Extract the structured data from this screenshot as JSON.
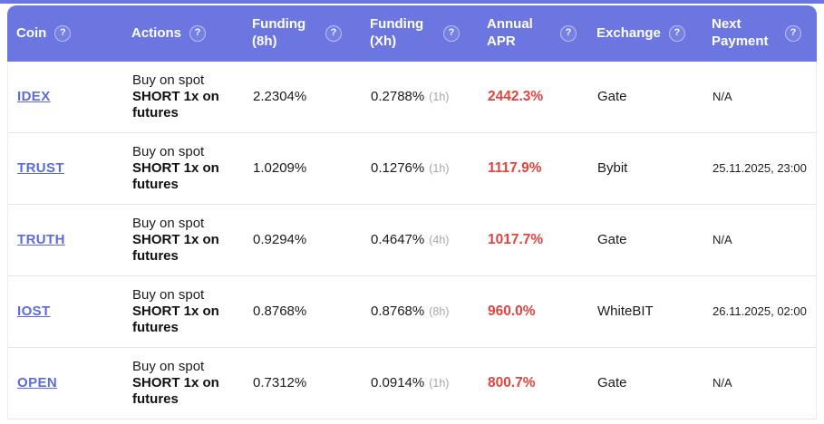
{
  "colors": {
    "header_bg": "#6b76e1",
    "coin_link": "#5c6bdb",
    "apr_red": "#e5423d",
    "muted_gray": "#a6a6a8",
    "row_divider": "#e3e3e6"
  },
  "table": {
    "help_icon": "?",
    "columns": [
      {
        "label": "Coin"
      },
      {
        "label": "Actions"
      },
      {
        "label": "Funding (8h)"
      },
      {
        "label": "Funding (Xh)"
      },
      {
        "label": "Annual APR"
      },
      {
        "label": "Exchange"
      },
      {
        "label": "Next Payment"
      }
    ],
    "rows": [
      {
        "coin": "IDEX",
        "action_buy": "Buy on spot",
        "action_short": "SHORT 1x on futures",
        "funding_8h": "2.2304%",
        "funding_xh": "0.2788%",
        "funding_xh_period": "(1h)",
        "annual_apr": "2442.3%",
        "exchange": "Gate",
        "next_payment": "N/A"
      },
      {
        "coin": "TRUST",
        "action_buy": "Buy on spot",
        "action_short": "SHORT 1x on futures",
        "funding_8h": "1.0209%",
        "funding_xh": "0.1276%",
        "funding_xh_period": "(1h)",
        "annual_apr": "1117.9%",
        "exchange": "Bybit",
        "next_payment": "25.11.2025, 23:00"
      },
      {
        "coin": "TRUTH",
        "action_buy": "Buy on spot",
        "action_short": "SHORT 1x on futures",
        "funding_8h": "0.9294%",
        "funding_xh": "0.4647%",
        "funding_xh_period": "(4h)",
        "annual_apr": "1017.7%",
        "exchange": "Gate",
        "next_payment": "N/A"
      },
      {
        "coin": "IOST",
        "action_buy": "Buy on spot",
        "action_short": "SHORT 1x on futures",
        "funding_8h": "0.8768%",
        "funding_xh": "0.8768%",
        "funding_xh_period": "(8h)",
        "annual_apr": "960.0%",
        "exchange": "WhiteBIT",
        "next_payment": "26.11.2025, 02:00"
      },
      {
        "coin": "OPEN",
        "action_buy": "Buy on spot",
        "action_short": "SHORT 1x on futures",
        "funding_8h": "0.7312%",
        "funding_xh": "0.0914%",
        "funding_xh_period": "(1h)",
        "annual_apr": "800.7%",
        "exchange": "Gate",
        "next_payment": "N/A"
      }
    ]
  }
}
